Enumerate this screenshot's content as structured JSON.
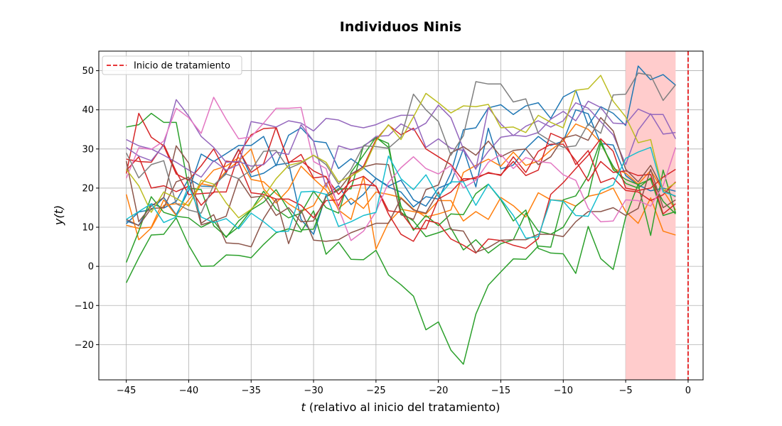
{
  "chart_data": {
    "type": "line",
    "title": "Individuos Ninis",
    "xlabel_italic": "t",
    "xlabel_rest": " (relativo al inicio del tratamiento)",
    "ylabel_italic": "y(t)",
    "xlim": [
      -47.2,
      1.2
    ],
    "ylim": [
      -29,
      55
    ],
    "xticks": [
      -45,
      -40,
      -35,
      -30,
      -25,
      -20,
      -15,
      -10,
      -5,
      0
    ],
    "yticks": [
      -20,
      -10,
      0,
      10,
      20,
      30,
      40,
      50
    ],
    "grid": true,
    "legend_placement": "top-left",
    "shaded_region": {
      "x_start": -5,
      "x_end": -1,
      "color": "#ffcccc"
    },
    "treatment_line": {
      "x": 0,
      "label": "Inicio de tratamiento",
      "color": "#e41a1c",
      "style": "dashed"
    },
    "x": [
      -45,
      -44,
      -43,
      -42,
      -41,
      -40,
      -39,
      -38,
      -37,
      -36,
      -35,
      -34,
      -33,
      -32,
      -31,
      -30,
      -29,
      -28,
      -27,
      -26,
      -25,
      -24,
      -23,
      -22,
      -21,
      -20,
      -19,
      -18,
      -17,
      -16,
      -15,
      -14,
      -13,
      -12,
      -11,
      -10,
      -9,
      -8,
      -7,
      -6,
      -5,
      -4,
      -3,
      -2,
      -1
    ],
    "series": [
      {
        "color": "#1f77b4",
        "values": [
          10.9,
          13.9,
          14.5,
          17.6,
          13.2,
          19.4,
          28.7,
          26.8,
          28.8,
          30.9,
          30.9,
          33.2,
          25.7,
          33.5,
          35.4,
          32.0,
          31.6,
          25.0,
          27.5,
          25.2,
          22.5,
          20.3,
          19.0,
          15.2,
          17.8,
          17.2,
          23.8,
          34.9,
          35.4,
          40.5,
          41.3,
          38.8,
          41.0,
          41.8,
          37.8,
          43.3,
          45.0,
          36.0,
          40.8,
          39.1,
          36.0,
          51.2,
          47.7,
          49.0,
          46.3
        ]
      },
      {
        "color": "#1f77b4",
        "values": [
          11.6,
          10.5,
          16.0,
          14.9,
          16.6,
          22.4,
          20.5,
          20.4,
          23.9,
          30.0,
          22.9,
          23.8,
          25.9,
          26.4,
          12.0,
          8.2,
          18.2,
          20.6,
          15.8,
          18.4,
          22.5,
          20.5,
          22.0,
          17.0,
          15.4,
          20.0,
          21.3,
          30.0,
          20.3,
          35.3,
          24.9,
          25.9,
          30.1,
          33.2,
          30.9,
          32.0,
          40.0,
          39.0,
          31.4,
          31.0,
          23.2,
          20.8,
          19.3,
          20.0,
          19.2
        ]
      },
      {
        "color": "#ff7f0e",
        "values": [
          18.4,
          6.8,
          9.8,
          15.6,
          16.0,
          15.7,
          21.1,
          20.5,
          24.4,
          26.9,
          30.0,
          19.8,
          16.2,
          19.6,
          25.6,
          22.4,
          19.5,
          14.8,
          17.4,
          14.8,
          19.0,
          18.4,
          17.6,
          14.6,
          12.6,
          13.4,
          14.4,
          24.0,
          25.8,
          27.4,
          25.6,
          29.2,
          25.8,
          26.9,
          29.7,
          32.1,
          36.4,
          35.0,
          31.6,
          25.0,
          23.8,
          21.0,
          24.5,
          19.4,
          14.4
        ]
      },
      {
        "color": "#ff7f0e",
        "values": [
          10.5,
          9.7,
          10.0,
          17.0,
          13.0,
          17.0,
          21.0,
          24.6,
          25.6,
          27.8,
          22.2,
          21.6,
          18.6,
          16.0,
          14.0,
          15.5,
          21.3,
          14.4,
          12.0,
          23.0,
          4.4,
          11.2,
          14.6,
          14.0,
          13.4,
          16.8,
          16.8,
          11.6,
          14.0,
          12.0,
          17.6,
          15.5,
          12.6,
          18.8,
          17.0,
          16.8,
          15.4,
          17.9,
          18.6,
          20.0,
          14.0,
          11.0,
          17.5,
          9.0,
          8.0
        ]
      },
      {
        "color": "#2ca02c",
        "values": [
          35.6,
          36.2,
          39.1,
          36.8,
          36.8,
          20.0,
          19.6,
          10.4,
          7.6,
          10.1,
          14.4,
          16.4,
          19.6,
          14.4,
          9.3,
          9.5,
          17.8,
          19.8,
          19.8,
          30.8,
          32.8,
          31.4,
          13.8,
          11.6,
          7.6,
          8.6,
          9.8,
          4.2,
          6.8,
          3.4,
          5.8,
          6.8,
          13.6,
          9.0,
          8.2,
          10.0,
          15.4,
          18.0,
          31.4,
          25.6,
          21.2,
          20.0,
          22.6,
          16.6,
          13.4
        ]
      },
      {
        "color": "#2ca02c",
        "values": [
          -4.2,
          2.2,
          8.0,
          8.2,
          12.4,
          5.4,
          0.0,
          0.1,
          2.9,
          2.8,
          2.2,
          5.6,
          8.6,
          9.6,
          8.8,
          14.2,
          3.1,
          6.2,
          1.8,
          1.7,
          4.1,
          -2.2,
          -4.7,
          -7.6,
          -16.2,
          -14.2,
          -21.4,
          -25.0,
          -12.2,
          -4.8,
          -1.4,
          1.9,
          1.8,
          5.2,
          4.9,
          17.0,
          18.0,
          23.2,
          32.2,
          24.7,
          22.2,
          20.9,
          22.3,
          13.0,
          14.0
        ]
      },
      {
        "color": "#2ca02c",
        "values": [
          1.0,
          9.0,
          17.8,
          13.8,
          12.8,
          12.4,
          10.0,
          11.6,
          7.4,
          11.6,
          14.4,
          19.2,
          14.6,
          12.4,
          13.6,
          19.2,
          15.0,
          13.6,
          24.0,
          28.4,
          33.0,
          30.4,
          15.4,
          9.2,
          13.0,
          10.4,
          13.4,
          13.2,
          18.6,
          21.0,
          17.0,
          11.6,
          14.4,
          4.6,
          3.4,
          3.2,
          -1.8,
          10.2,
          2.0,
          -0.8,
          12.6,
          21.0,
          7.9,
          24.6,
          13.6
        ]
      },
      {
        "color": "#d62728",
        "values": [
          23.7,
          39.1,
          33.0,
          30.8,
          23.6,
          22.0,
          25.7,
          30.0,
          24.0,
          29.8,
          24.0,
          26.2,
          35.6,
          26.4,
          28.6,
          22.6,
          23.0,
          15.4,
          23.0,
          25.6,
          32.4,
          36.1,
          33.6,
          35.3,
          30.0,
          28.0,
          26.0,
          21.8,
          22.8,
          23.8,
          23.4,
          26.8,
          23.2,
          24.6,
          34.0,
          32.6,
          26.0,
          29.6,
          21.4,
          22.6,
          19.4,
          19.0,
          16.8,
          18.3,
          21.6
        ]
      },
      {
        "color": "#d62728",
        "values": [
          24.5,
          28.0,
          20.0,
          20.6,
          19.1,
          20.5,
          15.6,
          19.0,
          19.0,
          28.6,
          33.6,
          35.2,
          35.4,
          26.6,
          27.0,
          24.4,
          22.8,
          18.4,
          21.8,
          23.0,
          20.4,
          13.4,
          8.2,
          6.4,
          11.8,
          11.0,
          7.0,
          5.4,
          3.4,
          7.0,
          6.6,
          5.4,
          4.6,
          7.1,
          18.4,
          21.4,
          25.0,
          28.4,
          32.6,
          29.4,
          20.0,
          19.4,
          20.0,
          22.8,
          24.8
        ]
      },
      {
        "color": "#d62728",
        "values": [
          27.4,
          26.8,
          26.6,
          31.2,
          24.2,
          18.3,
          18.6,
          18.8,
          26.9,
          26.5,
          18.8,
          18.4,
          17.2,
          17.2,
          15.6,
          12.4,
          16.8,
          17.0,
          20.5,
          21.0,
          20.5,
          14.2,
          13.8,
          9.6,
          9.6,
          17.2,
          19.0,
          22.4,
          22.4,
          24.0,
          23.2,
          28.0,
          24.0,
          29.4,
          31.2,
          31.2,
          27.0,
          21.8,
          26.8,
          24.0,
          24.4,
          23.2,
          23.5,
          13.4,
          16.0
        ]
      },
      {
        "color": "#9467bd",
        "values": [
          32.4,
          30.8,
          30.0,
          28.4,
          26.6,
          24.6,
          22.8,
          27.0,
          24.6,
          26.0,
          37.0,
          36.4,
          35.6,
          37.2,
          36.6,
          34.6,
          37.8,
          37.4,
          36.0,
          35.4,
          36.2,
          37.6,
          38.6,
          38.6,
          30.4,
          32.6,
          30.2,
          29.6,
          25.0,
          29.4,
          33.0,
          33.5,
          33.2,
          34.2,
          37.6,
          39.6,
          37.2,
          42.2,
          40.6,
          36.6,
          36.4,
          40.2,
          38.8,
          38.8,
          32.6
        ]
      },
      {
        "color": "#9467bd",
        "values": [
          30.4,
          28.2,
          27.0,
          31.0,
          42.6,
          38.4,
          33.2,
          30.4,
          26.6,
          26.8,
          25.6,
          26.0,
          29.2,
          28.6,
          36.2,
          32.0,
          20.2,
          30.8,
          29.8,
          30.6,
          33.2,
          33.4,
          36.4,
          34.8,
          36.6,
          41.2,
          38.0,
          30.0,
          24.8,
          40.6,
          36.4,
          33.4,
          35.8,
          37.2,
          35.6,
          37.2,
          41.8,
          40.4,
          37.0,
          33.6,
          26.0,
          34.8,
          39.0,
          33.8,
          34.2
        ]
      },
      {
        "color": "#8c564b",
        "values": [
          26.9,
          11.4,
          15.4,
          17.6,
          30.8,
          26.4,
          11.0,
          13.2,
          6.0,
          5.8,
          5.0,
          12.2,
          17.2,
          5.8,
          14.4,
          6.7,
          6.4,
          6.8,
          8.6,
          9.8,
          11.0,
          11.0,
          17.4,
          14.4,
          13.6,
          19.0,
          9.4,
          9.0,
          3.6,
          4.8,
          6.7,
          6.8,
          6.8,
          8.2,
          8.2,
          7.6,
          11.4,
          14.0,
          14.0,
          15.0,
          13.0,
          14.8,
          24.8,
          15.0,
          17.0
        ]
      },
      {
        "color": "#8c564b",
        "values": [
          12.0,
          10.4,
          14.8,
          15.0,
          21.6,
          22.8,
          10.6,
          11.6,
          12.8,
          22.4,
          17.6,
          18.0,
          13.0,
          15.0,
          11.4,
          11.6,
          17.8,
          19.4,
          23.6,
          25.4,
          26.2,
          26.0,
          13.2,
          12.0,
          19.6,
          20.8,
          29.0,
          30.6,
          28.4,
          32.0,
          28.0,
          29.6,
          30.0,
          26.0,
          28.0,
          32.8,
          33.6,
          32.2,
          38.0,
          34.6,
          24.8,
          21.6,
          25.8,
          19.6,
          17.8
        ]
      },
      {
        "color": "#e377c2",
        "values": [
          22.5,
          30.3,
          29.9,
          32.0,
          40.4,
          38.0,
          34.0,
          43.2,
          37.6,
          32.6,
          33.1,
          36.6,
          40.4,
          40.4,
          40.6,
          26.8,
          25.0,
          14.8,
          6.6,
          9.0,
          14.0,
          21.4,
          25.2,
          28.0,
          25.0,
          23.6,
          25.8,
          20.0,
          22.0,
          26.6,
          28.6,
          25.0,
          27.8,
          26.8,
          26.4,
          23.4,
          22.0,
          14.8,
          11.4,
          11.6,
          17.0,
          16.8,
          15.4,
          20.6,
          30.4
        ]
      },
      {
        "color": "#7f7f7f",
        "values": [
          29.0,
          22.6,
          26.0,
          27.0,
          16.0,
          14.4,
          13.6,
          20.8,
          23.6,
          22.4,
          24.6,
          29.4,
          29.6,
          25.0,
          26.4,
          28.4,
          26.0,
          21.0,
          24.8,
          30.8,
          30.6,
          30.2,
          33.0,
          44.0,
          40.0,
          37.0,
          28.4,
          33.4,
          47.2,
          46.6,
          46.6,
          42.0,
          42.8,
          34.0,
          32.0,
          30.4,
          30.8,
          36.4,
          34.0,
          43.8,
          44.0,
          49.4,
          48.8,
          42.4,
          46.4
        ]
      },
      {
        "color": "#bcbd22",
        "values": [
          24.8,
          20.6,
          13.8,
          19.0,
          17.4,
          15.4,
          22.0,
          21.0,
          16.2,
          12.4,
          14.6,
          17.8,
          22.4,
          25.8,
          26.6,
          28.4,
          26.6,
          21.6,
          23.0,
          25.0,
          32.0,
          36.2,
          32.4,
          38.2,
          44.2,
          41.8,
          39.2,
          41.0,
          40.8,
          41.4,
          35.4,
          35.6,
          34.2,
          38.6,
          36.8,
          35.4,
          45.0,
          45.4,
          48.8,
          42.2,
          38.2,
          31.6,
          32.4,
          19.2,
          21.4
        ]
      },
      {
        "color": "#17becf",
        "values": [
          12.0,
          14.0,
          16.0,
          11.2,
          12.6,
          20.6,
          12.6,
          11.2,
          12.2,
          9.6,
          13.6,
          11.4,
          8.8,
          9.0,
          19.0,
          19.2,
          18.4,
          10.2,
          11.4,
          13.0,
          13.8,
          28.2,
          22.4,
          19.6,
          23.4,
          17.8,
          21.6,
          21.6,
          15.6,
          21.0,
          17.2,
          13.0,
          7.2,
          7.6,
          17.0,
          16.6,
          13.0,
          12.8,
          19.4,
          20.8,
          27.6,
          29.2,
          30.4,
          19.0,
          18.0
        ]
      }
    ]
  }
}
